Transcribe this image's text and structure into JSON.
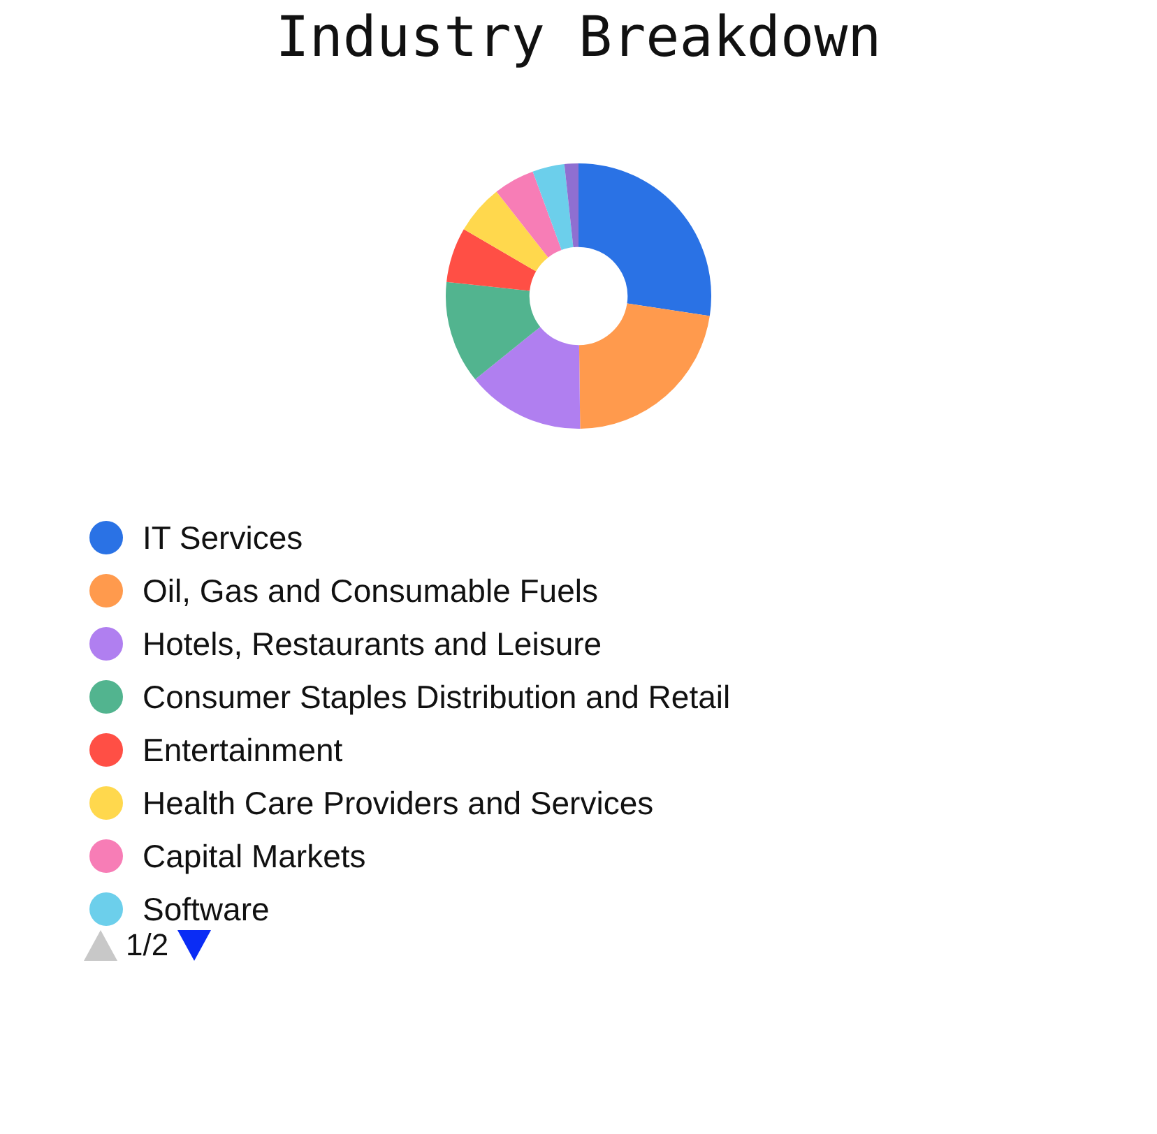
{
  "chart_data": {
    "type": "donut",
    "title": "Industry Breakdown",
    "categories": [
      "IT Services",
      "Oil, Gas and Consumable Fuels",
      "Hotels, Restaurants and Leisure",
      "Consumer Staples Distribution and Retail",
      "Entertainment",
      "Health Care Providers and Services",
      "Capital Markets",
      "Software",
      null
    ],
    "values": [
      27.4,
      22.4,
      14.4,
      12.5,
      6.7,
      6.0,
      5.0,
      3.9,
      1.7
    ],
    "colors": [
      "#2a72e5",
      "#ff9a4d",
      "#b07ff0",
      "#52b48f",
      "#ff4f45",
      "#ffd84d",
      "#f77db6",
      "#6ccfeb",
      "#8f6fd1"
    ],
    "legend": "bottom",
    "annotations": [
      "1/2"
    ]
  }
}
